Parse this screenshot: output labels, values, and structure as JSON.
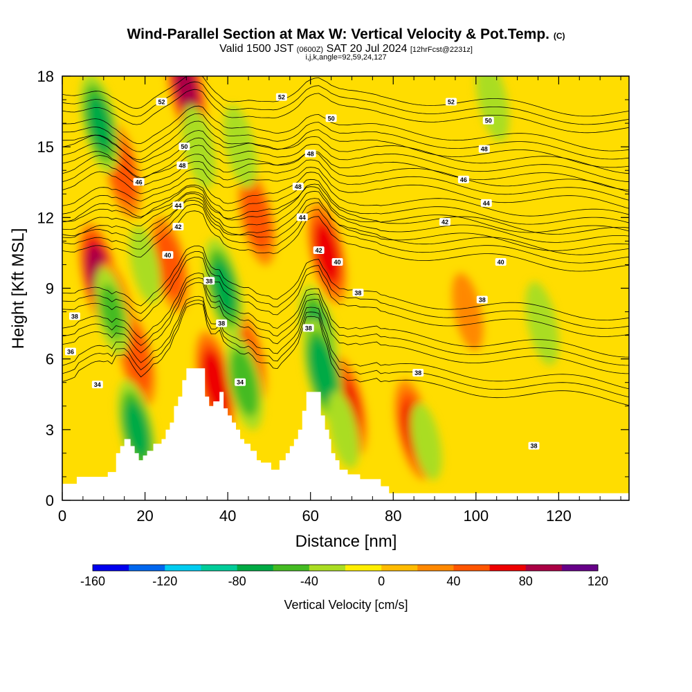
{
  "header": {
    "title_main": "Wind-Parallel Section at Max W: Vertical Velocity & Pot.Temp.",
    "title_mark": "(C)",
    "valid_a": "Valid 1500 JST",
    "valid_zulu": "(0600Z)",
    "valid_b": "SAT 20 Jul 2024",
    "forecast": "[12hrFcst@2231z]",
    "indices": "i,j,k,angle=92,59,24,127"
  },
  "chart_data": {
    "type": "heatmap",
    "xlabel": "Distance [nm]",
    "ylabel": "Height [Kft MSL]",
    "xlim": [
      0,
      137
    ],
    "ylim": [
      0,
      18
    ],
    "xticks": [
      0,
      20,
      40,
      60,
      80,
      100,
      120
    ],
    "yticks": [
      0,
      3,
      6,
      9,
      12,
      15,
      18
    ],
    "colorbar": {
      "title": "Vertical Velocity [cm/s]",
      "range": [
        -160,
        120
      ],
      "step": 20,
      "tick_labels": [
        -160,
        -120,
        -80,
        -40,
        0,
        40,
        80,
        120
      ],
      "colors": [
        "#0000ee",
        "#0066ee",
        "#00ccf0",
        "#00cc99",
        "#00aa44",
        "#44bb22",
        "#aadd22",
        "#ffee00",
        "#ffbb00",
        "#ff8800",
        "#ff5500",
        "#ee0000",
        "#aa0044",
        "#660088"
      ]
    },
    "fill_background": "#ffdd00",
    "terrain_profile": [
      [
        0,
        0.7
      ],
      [
        3.5,
        0.7
      ],
      [
        3.5,
        1.0
      ],
      [
        11,
        1.0
      ],
      [
        11,
        1.2
      ],
      [
        13,
        1.2
      ],
      [
        13,
        2.0
      ],
      [
        14,
        2.0
      ],
      [
        14,
        2.3
      ],
      [
        15,
        2.3
      ],
      [
        15,
        2.6
      ],
      [
        16.5,
        2.6
      ],
      [
        16.5,
        2.3
      ],
      [
        17.5,
        2.3
      ],
      [
        17.5,
        2.0
      ],
      [
        18.5,
        2.0
      ],
      [
        18.5,
        1.7
      ],
      [
        19.5,
        1.7
      ],
      [
        19.5,
        1.9
      ],
      [
        20.5,
        1.9
      ],
      [
        20.5,
        2.1
      ],
      [
        22,
        2.1
      ],
      [
        22,
        2.4
      ],
      [
        24,
        2.4
      ],
      [
        24,
        2.6
      ],
      [
        25,
        2.6
      ],
      [
        25,
        3.0
      ],
      [
        26,
        3.0
      ],
      [
        26,
        3.3
      ],
      [
        27,
        3.3
      ],
      [
        27,
        4.0
      ],
      [
        28,
        4.0
      ],
      [
        28,
        4.4
      ],
      [
        29,
        4.4
      ],
      [
        29,
        5.1
      ],
      [
        30,
        5.1
      ],
      [
        30,
        5.6
      ],
      [
        34.5,
        5.6
      ],
      [
        34.5,
        4.4
      ],
      [
        35.5,
        4.4
      ],
      [
        35.5,
        4.0
      ],
      [
        36.5,
        4.0
      ],
      [
        36.5,
        4.2
      ],
      [
        38,
        4.2
      ],
      [
        38,
        4.6
      ],
      [
        39,
        4.6
      ],
      [
        39,
        3.9
      ],
      [
        40,
        3.9
      ],
      [
        40,
        3.6
      ],
      [
        41,
        3.6
      ],
      [
        41,
        3.3
      ],
      [
        42,
        3.3
      ],
      [
        42,
        3.0
      ],
      [
        43,
        3.0
      ],
      [
        43,
        2.6
      ],
      [
        44,
        2.6
      ],
      [
        44,
        2.4
      ],
      [
        45.5,
        2.4
      ],
      [
        45.5,
        2.1
      ],
      [
        47,
        2.1
      ],
      [
        47,
        1.7
      ],
      [
        48,
        1.7
      ],
      [
        48,
        1.6
      ],
      [
        50.5,
        1.6
      ],
      [
        50.5,
        1.3
      ],
      [
        52.5,
        1.3
      ],
      [
        52.5,
        1.7
      ],
      [
        54,
        1.7
      ],
      [
        54,
        2.0
      ],
      [
        55,
        2.0
      ],
      [
        55,
        2.3
      ],
      [
        56,
        2.3
      ],
      [
        56,
        2.6
      ],
      [
        57,
        2.6
      ],
      [
        57,
        3.0
      ],
      [
        58,
        3.0
      ],
      [
        58,
        3.8
      ],
      [
        59,
        3.8
      ],
      [
        59,
        4.6
      ],
      [
        62.5,
        4.6
      ],
      [
        62.5,
        3.6
      ],
      [
        63.5,
        3.6
      ],
      [
        63.5,
        3.0
      ],
      [
        64.5,
        3.0
      ],
      [
        64.5,
        2.6
      ],
      [
        65,
        2.6
      ],
      [
        65,
        2.0
      ],
      [
        66,
        2.0
      ],
      [
        66,
        1.7
      ],
      [
        67,
        1.7
      ],
      [
        67,
        1.3
      ],
      [
        69,
        1.3
      ],
      [
        69,
        1.1
      ],
      [
        72,
        1.1
      ],
      [
        72,
        0.9
      ],
      [
        77,
        0.9
      ],
      [
        77,
        0.6
      ],
      [
        79,
        0.6
      ],
      [
        79,
        0.3
      ],
      [
        137,
        0.3
      ]
    ],
    "updrafts": [
      {
        "x": 9,
        "z": 9.5,
        "w": 90
      },
      {
        "x": 13,
        "z": 8,
        "w": 60
      },
      {
        "x": 14.5,
        "z": 14,
        "w": 50
      },
      {
        "x": 18,
        "z": 6,
        "w": 50
      },
      {
        "x": 30,
        "z": 17.5,
        "w": 80
      },
      {
        "x": 26,
        "z": 10,
        "w": 50
      },
      {
        "x": 37,
        "z": 5,
        "w": 70
      },
      {
        "x": 47,
        "z": 12,
        "w": 50
      },
      {
        "x": 45,
        "z": 6,
        "w": 45
      },
      {
        "x": 64,
        "z": 10.5,
        "w": 65
      },
      {
        "x": 69,
        "z": 4,
        "w": 60
      },
      {
        "x": 85,
        "z": 3,
        "w": 60
      },
      {
        "x": 98,
        "z": 8,
        "w": 30
      }
    ],
    "downdrafts": [
      {
        "x": 9,
        "z": 16,
        "w": -60
      },
      {
        "x": 12,
        "z": 8,
        "w": -40
      },
      {
        "x": 18,
        "z": 3,
        "w": -60
      },
      {
        "x": 20,
        "z": 10,
        "w": -30
      },
      {
        "x": 33,
        "z": 15,
        "w": -35
      },
      {
        "x": 39,
        "z": 9,
        "w": -60
      },
      {
        "x": 43,
        "z": 15,
        "w": -35
      },
      {
        "x": 44,
        "z": 5,
        "w": -50
      },
      {
        "x": 62,
        "z": 7,
        "w": -60
      },
      {
        "x": 63,
        "z": 5.5,
        "w": -70
      },
      {
        "x": 68,
        "z": 3,
        "w": -30
      },
      {
        "x": 88,
        "z": 2.5,
        "w": -30
      },
      {
        "x": 104,
        "z": 17,
        "w": -35
      },
      {
        "x": 116,
        "z": 7.5,
        "w": -35
      }
    ],
    "isentropes": [
      {
        "label": "34",
        "z0": 4.9
      },
      {
        "label": "36",
        "z0": 6.3
      },
      {
        "label": "38",
        "z0": 7.8
      },
      {
        "label": "40",
        "z0": 10.5
      },
      {
        "label": "42",
        "z0": 11.3
      },
      {
        "label": "44",
        "z0": 12.0
      },
      {
        "label": "46",
        "z0": 13.2
      },
      {
        "label": "48",
        "z0": 14.1
      },
      {
        "label": "50",
        "z0": 15.0
      },
      {
        "label": "52",
        "z0": 16.4
      }
    ],
    "contour_labels": [
      {
        "text": "52",
        "x": 24,
        "z": 16.9
      },
      {
        "text": "52",
        "x": 53,
        "z": 17.1
      },
      {
        "text": "52",
        "x": 94,
        "z": 16.9
      },
      {
        "text": "50",
        "x": 65,
        "z": 16.2
      },
      {
        "text": "50",
        "x": 103,
        "z": 16.1
      },
      {
        "text": "50",
        "x": 29.5,
        "z": 15.0
      },
      {
        "text": "48",
        "x": 29,
        "z": 14.2
      },
      {
        "text": "48",
        "x": 60,
        "z": 14.7
      },
      {
        "text": "48",
        "x": 102,
        "z": 14.9
      },
      {
        "text": "48",
        "x": 57,
        "z": 13.3
      },
      {
        "text": "46",
        "x": 18.5,
        "z": 13.5
      },
      {
        "text": "46",
        "x": 97,
        "z": 13.6
      },
      {
        "text": "44",
        "x": 28,
        "z": 12.5
      },
      {
        "text": "44",
        "x": 58,
        "z": 12.0
      },
      {
        "text": "44",
        "x": 102.5,
        "z": 12.6
      },
      {
        "text": "42",
        "x": 28,
        "z": 11.6
      },
      {
        "text": "42",
        "x": 62,
        "z": 10.6
      },
      {
        "text": "42",
        "x": 92.5,
        "z": 11.8
      },
      {
        "text": "40",
        "x": 25.5,
        "z": 10.4
      },
      {
        "text": "40",
        "x": 66.5,
        "z": 10.1
      },
      {
        "text": "40",
        "x": 106,
        "z": 10.1
      },
      {
        "text": "38",
        "x": 35.5,
        "z": 9.3
      },
      {
        "text": "38",
        "x": 71.5,
        "z": 8.8
      },
      {
        "text": "38",
        "x": 101.5,
        "z": 8.5
      },
      {
        "text": "38",
        "x": 3,
        "z": 7.8
      },
      {
        "text": "38",
        "x": 38.5,
        "z": 7.5
      },
      {
        "text": "38",
        "x": 59.5,
        "z": 7.3
      },
      {
        "text": "38",
        "x": 86,
        "z": 5.4
      },
      {
        "text": "38",
        "x": 114,
        "z": 2.3
      },
      {
        "text": "36",
        "x": 2,
        "z": 6.3
      },
      {
        "text": "34",
        "x": 8.5,
        "z": 4.9
      },
      {
        "text": "34",
        "x": 43,
        "z": 5.0
      }
    ]
  }
}
